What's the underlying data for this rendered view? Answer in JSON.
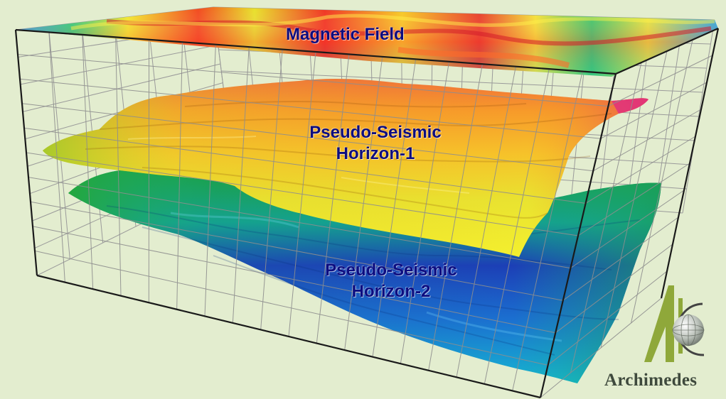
{
  "labels": {
    "magnetic_field": "Magnetic Field",
    "horizon1_line1": "Pseudo-Seismic",
    "horizon1_line2": "Horizon-1",
    "horizon2_line1": "Pseudo-Seismic",
    "horizon2_line2": "Horizon-2"
  },
  "logo": {
    "name": "Archimedes",
    "mark": "A-globe-icon"
  },
  "colors": {
    "background": "#e3edcf",
    "label_text": "#0d0d80",
    "grid": "#8e8e8e",
    "frame": "#1a1a1a",
    "logo_green": "#8fa83a"
  }
}
